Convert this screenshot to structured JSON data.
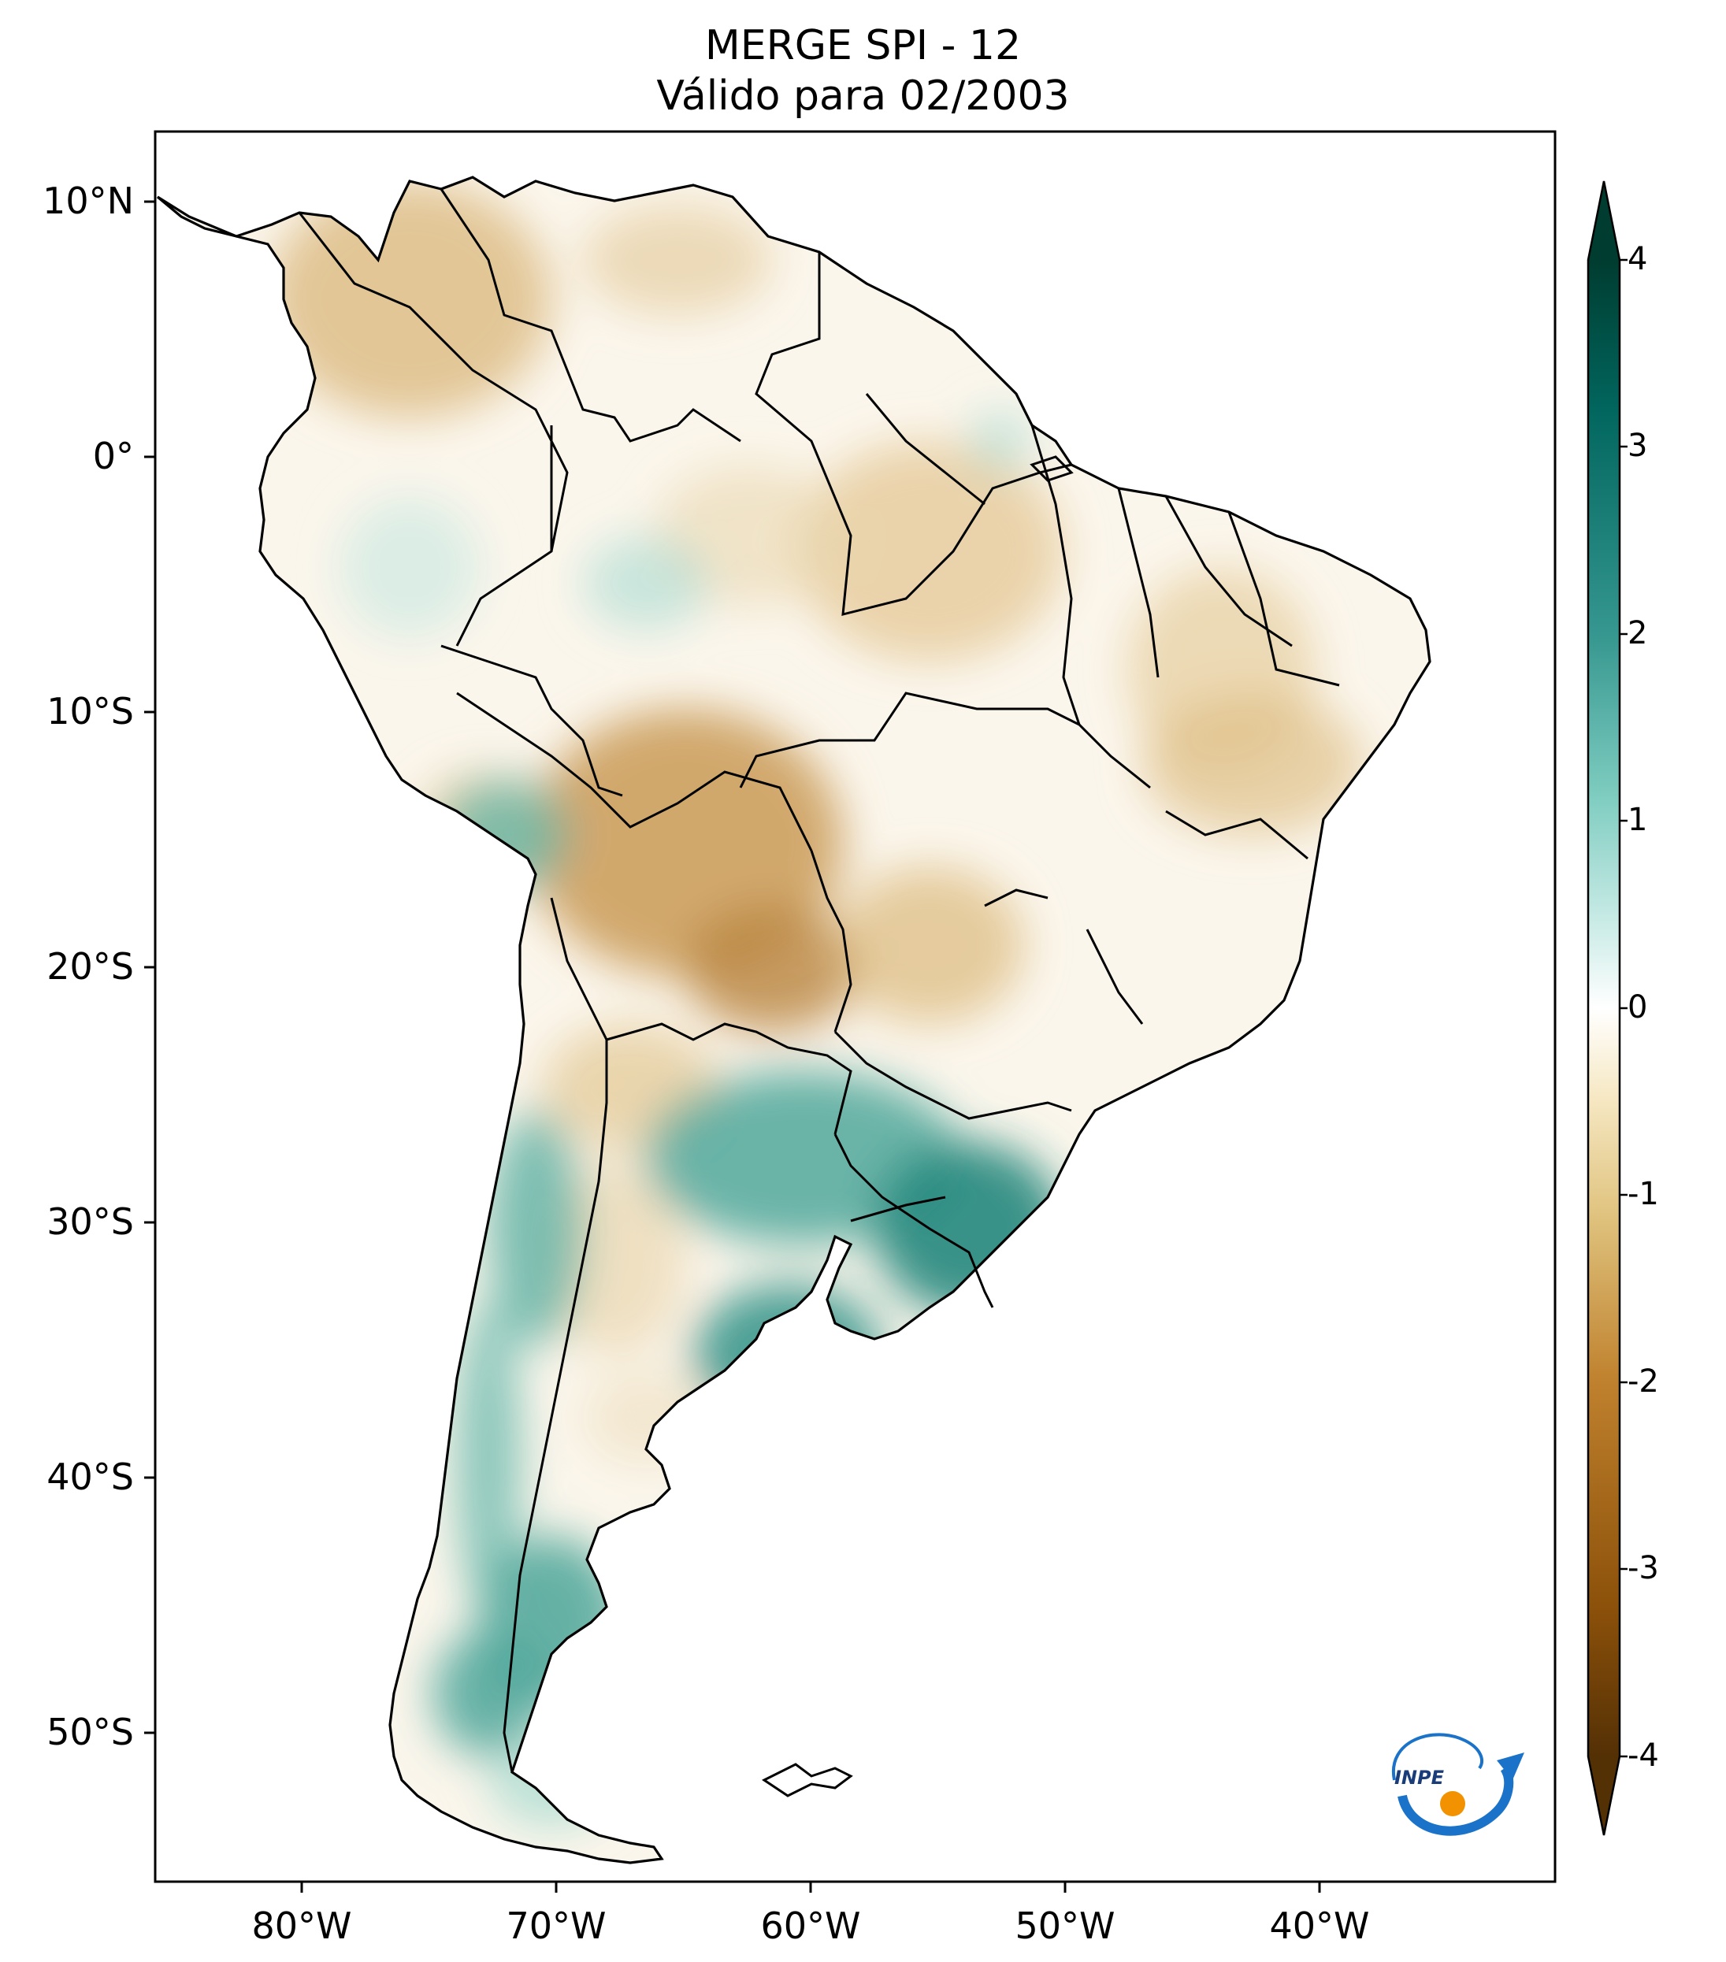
{
  "title": {
    "line1": "MERGE   SPI - 12",
    "line2": "Válido para 02/2003"
  },
  "map": {
    "lat_ticks": [
      "10°N",
      "0°",
      "10°S",
      "20°S",
      "30°S",
      "40°S",
      "50°S"
    ],
    "lon_ticks": [
      "80°W",
      "70°W",
      "60°W",
      "50°W",
      "40°W"
    ],
    "lat_values": [
      10,
      0,
      -10,
      -20,
      -30,
      -40,
      -50
    ],
    "lon_values": [
      -80,
      -70,
      -60,
      -50,
      -40
    ],
    "extent": {
      "lon_min": -85,
      "lon_max": -30,
      "lat_min": -56,
      "lat_max": 13
    }
  },
  "colorbar": {
    "ticks": [
      "4",
      "3",
      "2",
      "1",
      "0",
      "-1",
      "-2",
      "-3",
      "-4"
    ],
    "range": [
      -4,
      4
    ],
    "colormap": "BrBG",
    "extend": "both",
    "colors": [
      "#543005",
      "#8c510a",
      "#bf812d",
      "#dfc27d",
      "#f6e8c3",
      "#ffffff",
      "#c7eae5",
      "#80cdc1",
      "#35978f",
      "#01665e",
      "#003c30"
    ]
  },
  "logo": {
    "text": "INPE",
    "icon": "inpe-logo-icon"
  }
}
